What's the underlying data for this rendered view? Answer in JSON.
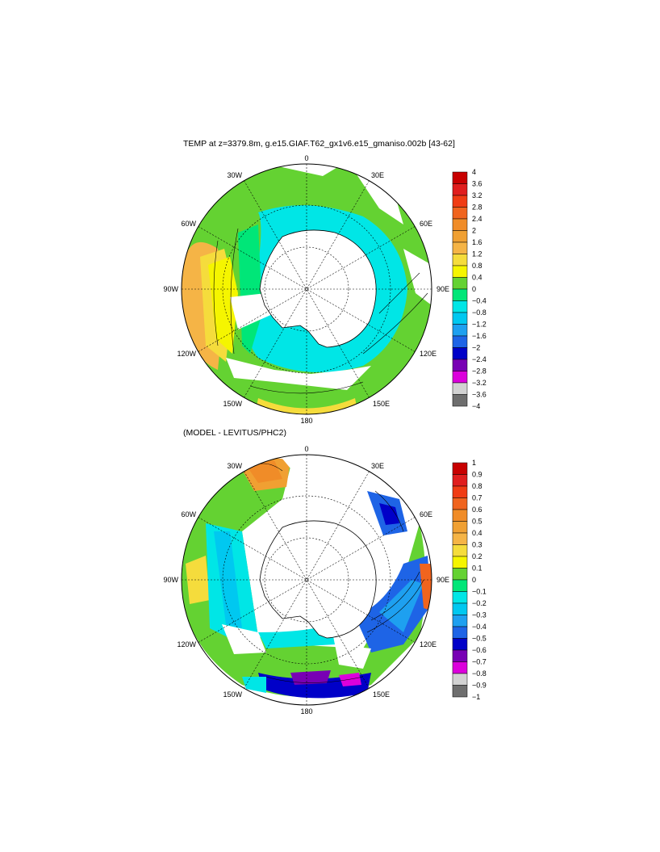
{
  "title_top": "TEMP at z=3379.8m, g.e15.GIAF.T62_gx1v6.e15_gmaniso.002b [43-62]",
  "title_bottom": "(MODEL - LEVITUS/PHC2)",
  "map_labels": {
    "top": "0",
    "bottom": "180",
    "left": "90W",
    "right": "90E",
    "w30": "30W",
    "e30": "30E",
    "w60": "60W",
    "e60": "60E",
    "w120": "120W",
    "e120": "120E",
    "w150": "150W",
    "e150": "150E"
  },
  "colorbar_top": {
    "labels": [
      "4",
      "3.6",
      "3.2",
      "2.8",
      "2.4",
      "2",
      "1.6",
      "1.2",
      "0.8",
      "0.4",
      "0",
      "−0.4",
      "−0.8",
      "−1.2",
      "−1.6",
      "−2",
      "−2.4",
      "−2.8",
      "−3.2",
      "−3.6",
      "−4"
    ],
    "colors": [
      "#c80000",
      "#e01e1e",
      "#f03c14",
      "#f0641e",
      "#f08c28",
      "#f0a032",
      "#f5b446",
      "#f5dc3c",
      "#f5f500",
      "#64d232",
      "#00e678",
      "#00e6e6",
      "#00c8f0",
      "#1ea0f0",
      "#1e64e6",
      "#0000c8",
      "#7800b4",
      "#dc00dc",
      "#d2d2d2",
      "#6e6e6e"
    ]
  },
  "colorbar_bottom": {
    "labels": [
      "1",
      "0.9",
      "0.8",
      "0.7",
      "0.6",
      "0.5",
      "0.4",
      "0.3",
      "0.2",
      "0.1",
      "0",
      "−0.1",
      "−0.2",
      "−0.3",
      "−0.4",
      "−0.5",
      "−0.6",
      "−0.7",
      "−0.8",
      "−0.9",
      "−1"
    ],
    "colors": [
      "#c80000",
      "#e01e1e",
      "#f03c14",
      "#f0641e",
      "#f08c28",
      "#f0a032",
      "#f5b446",
      "#f5dc3c",
      "#f5f500",
      "#64d232",
      "#00e678",
      "#00e6e6",
      "#00c8f0",
      "#1ea0f0",
      "#1e64e6",
      "#0000c8",
      "#7800b4",
      "#dc00dc",
      "#d2d2d2",
      "#6e6e6e"
    ]
  }
}
